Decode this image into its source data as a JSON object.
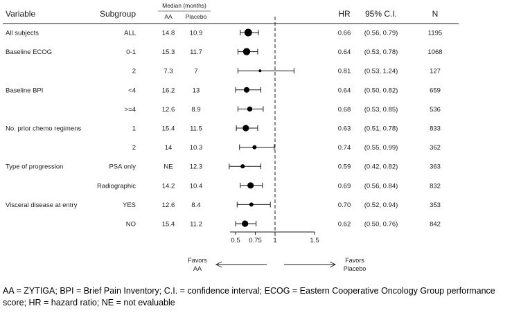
{
  "headers": {
    "variable": "Variable",
    "subgroup": "Subgroup",
    "median": "Median (months)",
    "aa": "AA",
    "placebo": "Placebo",
    "hr": "HR",
    "ci": "95% C.I.",
    "n": "N"
  },
  "favors": {
    "left_line1": "Favors",
    "left_line2": "AA",
    "right_line1": "Favors",
    "right_line2": "Placebo"
  },
  "footnote": "AA = ZYTIGA; BPI = Brief Pain Inventory; C.I. = confidence interval; ECOG = Eastern Cooperative Oncology Group performance score; HR = hazard ratio; NE = not evaluable",
  "chart_data": {
    "type": "forest",
    "axis_ticks": [
      0.5,
      0.75,
      1,
      1.5
    ],
    "axis_tick_labels": [
      "0.5",
      "0.75",
      "1",
      "1.5"
    ],
    "xlim": [
      0.5,
      1.5
    ],
    "reference_line": 1,
    "rows": [
      {
        "variable": "All subjects",
        "subgroup": "ALL",
        "aa": "14.8",
        "placebo": "10.9",
        "hr": 0.66,
        "lo": 0.56,
        "hi": 0.79,
        "hr_text": "0.66",
        "ci_text": "(0.56, 0.79)",
        "n": "1195"
      },
      {
        "variable": "Baseline ECOG",
        "subgroup": "0-1",
        "aa": "15.3",
        "placebo": "11.7",
        "hr": 0.64,
        "lo": 0.53,
        "hi": 0.78,
        "hr_text": "0.64",
        "ci_text": "(0.53, 0.78)",
        "n": "1068"
      },
      {
        "variable": "",
        "subgroup": "2",
        "aa": "7.3",
        "placebo": "7",
        "hr": 0.81,
        "lo": 0.53,
        "hi": 1.24,
        "hr_text": "0.81",
        "ci_text": "(0.53, 1.24)",
        "n": "127"
      },
      {
        "variable": "Baseline BPI",
        "subgroup": "<4",
        "aa": "16.2",
        "placebo": "13",
        "hr": 0.64,
        "lo": 0.5,
        "hi": 0.82,
        "hr_text": "0.64",
        "ci_text": "(0.50, 0.82)",
        "n": "659"
      },
      {
        "variable": "",
        "subgroup": ">=4",
        "aa": "12.6",
        "placebo": "8.9",
        "hr": 0.68,
        "lo": 0.53,
        "hi": 0.85,
        "hr_text": "0.68",
        "ci_text": "(0.53, 0.85)",
        "n": "536"
      },
      {
        "variable": "No. prior chemo regimens",
        "subgroup": "1",
        "aa": "15.4",
        "placebo": "11.5",
        "hr": 0.63,
        "lo": 0.51,
        "hi": 0.78,
        "hr_text": "0.63",
        "ci_text": "(0.51, 0.78)",
        "n": "833"
      },
      {
        "variable": "",
        "subgroup": "2",
        "aa": "14",
        "placebo": "10.3",
        "hr": 0.74,
        "lo": 0.55,
        "hi": 0.99,
        "hr_text": "0.74",
        "ci_text": "(0.55, 0.99)",
        "n": "362"
      },
      {
        "variable": "Type of progression",
        "subgroup": "PSA only",
        "aa": "NE",
        "placebo": "12.3",
        "hr": 0.59,
        "lo": 0.42,
        "hi": 0.82,
        "hr_text": "0.59",
        "ci_text": "(0.42, 0.82)",
        "n": "363"
      },
      {
        "variable": "",
        "subgroup": "Radiographic",
        "aa": "14.2",
        "placebo": "10.4",
        "hr": 0.69,
        "lo": 0.56,
        "hi": 0.84,
        "hr_text": "0.69",
        "ci_text": "(0.56, 0.84)",
        "n": "832"
      },
      {
        "variable": "Visceral disease at entry",
        "subgroup": "YES",
        "aa": "12.6",
        "placebo": "8.4",
        "hr": 0.7,
        "lo": 0.52,
        "hi": 0.94,
        "hr_text": "0.70",
        "ci_text": "(0.52, 0.94)",
        "n": "353"
      },
      {
        "variable": "",
        "subgroup": "NO",
        "aa": "15.4",
        "placebo": "11.2",
        "hr": 0.62,
        "lo": 0.5,
        "hi": 0.76,
        "hr_text": "0.62",
        "ci_text": "(0.50, 0.76)",
        "n": "842"
      }
    ]
  }
}
